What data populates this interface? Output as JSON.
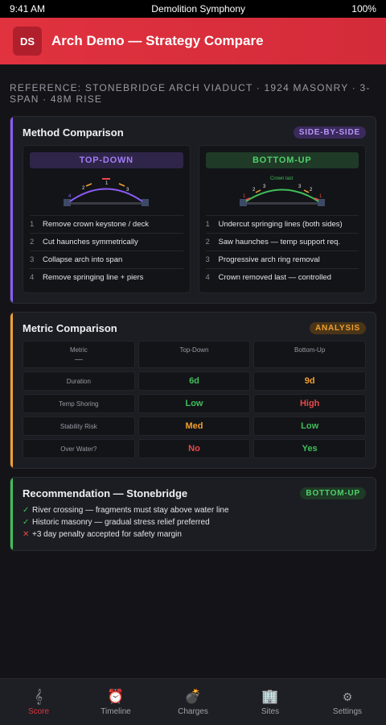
{
  "status": {
    "time": "9:41 AM",
    "title": "Demolition Symphony",
    "battery": "100%"
  },
  "header": {
    "logo": "DS",
    "title": "Arch Demo — Strategy Compare"
  },
  "reference": "REFERENCE: STONEBRIDGE ARCH VIADUCT · 1924 MASONRY · 3-SPAN · 48M RISE",
  "method": {
    "title": "Method Comparison",
    "badge": "SIDE-BY-SIDE",
    "top_down": {
      "label": "TOP-DOWN",
      "diagram_labels": [
        "1",
        "2",
        "3",
        "4"
      ],
      "steps": [
        {
          "n": "1",
          "text": "Remove crown keystone / deck"
        },
        {
          "n": "2",
          "text": "Cut haunches symmetrically"
        },
        {
          "n": "3",
          "text": "Collapse arch into span"
        },
        {
          "n": "4",
          "text": "Remove springing line + piers"
        }
      ]
    },
    "bottom_up": {
      "label": "BOTTOM-UP",
      "diagram_labels": [
        "Crown last",
        "1",
        "2",
        "3",
        "1",
        "2",
        "3"
      ],
      "steps": [
        {
          "n": "1",
          "text": "Undercut springing lines (both sides)"
        },
        {
          "n": "2",
          "text": "Saw haunches — temp support req."
        },
        {
          "n": "3",
          "text": "Progressive arch ring removal"
        },
        {
          "n": "4",
          "text": "Crown removed last — controlled"
        }
      ]
    }
  },
  "metrics": {
    "title": "Metric Comparison",
    "badge": "ANALYSIS",
    "headers": {
      "metric": "Metric",
      "metric_sub": "—",
      "top": "Top-Down",
      "bottom": "Bottom-Up"
    },
    "rows": [
      {
        "label": "Duration",
        "top": "6d",
        "top_color": "#3fbf5a",
        "bottom": "9d",
        "bottom_color": "#f0a030"
      },
      {
        "label": "Temp Shoring",
        "top": "Low",
        "top_color": "#3fbf5a",
        "bottom": "High",
        "bottom_color": "#e84848"
      },
      {
        "label": "Stability Risk",
        "top": "Med",
        "top_color": "#f0a030",
        "bottom": "Low",
        "bottom_color": "#3fbf5a"
      },
      {
        "label": "Over Water?",
        "top": "No",
        "top_color": "#e84848",
        "bottom": "Yes",
        "bottom_color": "#3fbf5a"
      }
    ]
  },
  "recommendation": {
    "title": "Recommendation — Stonebridge",
    "badge": "BOTTOM-UP",
    "items": [
      {
        "mark": "✓",
        "mark_color": "#3fbf5a",
        "text": "River crossing — fragments must stay above water line"
      },
      {
        "mark": "✓",
        "mark_color": "#3fbf5a",
        "text": "Historic masonry — gradual stress relief preferred"
      },
      {
        "mark": "✕",
        "mark_color": "#e84848",
        "text": "+3 day penalty accepted for safety margin"
      }
    ]
  },
  "tabs": [
    {
      "label": "Score",
      "icon": "score-icon"
    },
    {
      "label": "Timeline",
      "icon": "alarm-clock-icon"
    },
    {
      "label": "Charges",
      "icon": "bomb-icon"
    },
    {
      "label": "Sites",
      "icon": "building-icon"
    },
    {
      "label": "Settings",
      "icon": "gear-icon"
    }
  ],
  "colors": {
    "brand": "#e0323f",
    "purple": "#8b5cf6",
    "green": "#3fbf5a",
    "orange": "#f0a030",
    "red": "#e84848"
  }
}
